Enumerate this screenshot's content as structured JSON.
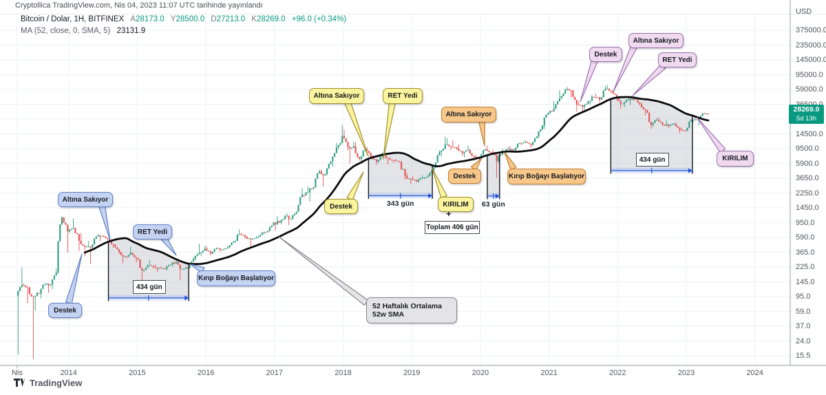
{
  "publish_bar": {
    "text": "Cryptollica TradingView.com, Nis 04, 2023 11:07 UTC tarihinde yayınlandı"
  },
  "legend": {
    "symbol": {
      "title": "Bitcoin / Dolar, 1H, BITFINEX",
      "open_label": "A",
      "open": "28173.0",
      "high_label": "Y",
      "high": "28500.0",
      "low_label": "D",
      "low": "27213.0",
      "close_label": "K",
      "close": "28269.0",
      "change": "+96.0 (+0.34%)"
    },
    "ma": {
      "label": "MA (52, close, 0, SMA, 5)",
      "value": "23131.9"
    }
  },
  "price_axis": {
    "currency": "USD",
    "ticks": [
      "375000.0",
      "235000.0",
      "145000.0",
      "95000.0",
      "59000.0",
      "36500.0",
      "14500.0",
      "9500.0",
      "5900.0",
      "3650.0",
      "2250.0",
      "1450.0",
      "950.0",
      "590.0",
      "365.0",
      "225.0",
      "145.0",
      "95.0",
      "59.0",
      "37.0",
      "24.0",
      "15.5"
    ],
    "last_price": "28269.0",
    "countdown": "5d 13h",
    "tag_color": "#089981"
  },
  "time_axis": {
    "first_label": "Nis",
    "years": [
      "2014",
      "2015",
      "2016",
      "2017",
      "2018",
      "2019",
      "2020",
      "2021",
      "2022",
      "2023",
      "2024"
    ]
  },
  "annotations": {
    "callouts": [
      {
        "id": "c1",
        "text": "Altına Sakıyor",
        "family": "blue"
      },
      {
        "id": "c2",
        "text": "RET Yedi",
        "family": "blue"
      },
      {
        "id": "c3",
        "text": "Destek",
        "family": "blue"
      },
      {
        "id": "c4",
        "text": "Kırıp Boğayı Başlatıyor",
        "family": "blue"
      },
      {
        "id": "c5",
        "text": "Altına Sakıyor",
        "family": "yellow"
      },
      {
        "id": "c6",
        "text": "RET Yedi",
        "family": "yellow"
      },
      {
        "id": "c7",
        "text": "Destek",
        "family": "yellow"
      },
      {
        "id": "c8",
        "text": "KIRILIM",
        "family": "yellow"
      },
      {
        "id": "c9",
        "text": "Altına Sakıyor",
        "family": "orange"
      },
      {
        "id": "c10",
        "text": "Destek",
        "family": "orange"
      },
      {
        "id": "c11",
        "text": "Kırıp Boğayı Başlatıyor",
        "family": "orange"
      },
      {
        "id": "c12",
        "text": "Destek",
        "family": "pink"
      },
      {
        "id": "c13",
        "text": "Altına Sakıyor",
        "family": "pink"
      },
      {
        "id": "c14",
        "text": "RET Yedi",
        "family": "pink"
      },
      {
        "id": "c15",
        "text": "KIRILIM",
        "family": "pink"
      }
    ],
    "total": {
      "plus": "+",
      "text": "Toplam 406 gün"
    },
    "sma_note": {
      "line1": "52 Haftalık Ortalama",
      "line2": "52w SMA"
    }
  },
  "footer": {
    "logo_text": "TradingView"
  },
  "colors": {
    "candle_up": "#2f9c7f",
    "candle_down": "#e4514f",
    "sma_line": "#0a0a0c",
    "grid": "#eef1f6",
    "region_fill": "#c6c9d2",
    "measure_blue": "#2962ff",
    "tag_bg": "#089981",
    "axis_text": "#50545e",
    "callout_blue": "#c5d3f2",
    "callout_yellow": "#fbf49e",
    "callout_orange": "#f8c88b",
    "callout_pink": "#efdaf0"
  },
  "chart_data": {
    "type": "candlestick",
    "symbol": "Bitcoin / Dolar",
    "interval": "1H",
    "exchange": "BITFINEX",
    "scale": "log",
    "months_start": "2013-04",
    "months_end": "2023-04",
    "first_open": 100,
    "close": [
      139,
      128,
      97,
      106,
      141,
      141,
      204,
      1130,
      732,
      806,
      550,
      458,
      446,
      627,
      635,
      583,
      478,
      387,
      338,
      378,
      320,
      218,
      254,
      244,
      236,
      230,
      263,
      284,
      230,
      236,
      314,
      377,
      430,
      369,
      437,
      416,
      448,
      531,
      673,
      624,
      573,
      610,
      700,
      745,
      964,
      970,
      1180,
      1080,
      1350,
      2300,
      2480,
      2875,
      4700,
      4360,
      6450,
      9900,
      14100,
      10100,
      10300,
      6930,
      9240,
      7490,
      6400,
      7730,
      7030,
      6620,
      6340,
      4030,
      3740,
      3460,
      3850,
      4100,
      5320,
      8560,
      10800,
      10100,
      9600,
      8300,
      9150,
      7550,
      7200,
      9350,
      8550,
      6440,
      8630,
      9450,
      9140,
      11350,
      11650,
      10780,
      13800,
      19700,
      29000,
      33100,
      45200,
      58800,
      57750,
      37300,
      35000,
      41500,
      47100,
      43800,
      61300,
      57000,
      46200,
      38500,
      43200,
      45500,
      37650,
      31800,
      19900,
      23300,
      20050,
      19400,
      20500,
      17150,
      16550,
      23100,
      23150,
      28450,
      28269
    ],
    "high": [
      240,
      146,
      133,
      112,
      148,
      147,
      232,
      1163,
      1150,
      1093,
      830,
      700,
      545,
      630,
      677,
      655,
      600,
      495,
      390,
      460,
      382,
      321,
      266,
      300,
      262,
      248,
      268,
      316,
      288,
      248,
      334,
      502,
      467,
      463,
      448,
      439,
      470,
      550,
      780,
      706,
      630,
      628,
      720,
      755,
      982,
      1180,
      1220,
      1290,
      1365,
      2790,
      2980,
      2920,
      4980,
      4980,
      6500,
      11400,
      19800,
      17200,
      11790,
      11700,
      9760,
      9990,
      7750,
      8480,
      7760,
      7410,
      6940,
      6550,
      4410,
      4090,
      4190,
      4290,
      5620,
      9060,
      13880,
      13150,
      12320,
      10950,
      10540,
      9500,
      7750,
      9570,
      10500,
      9190,
      9460,
      10050,
      10380,
      11450,
      12470,
      12050,
      14100,
      19860,
      29300,
      42000,
      58350,
      61780,
      64800,
      59500,
      41330,
      42240,
      50500,
      52920,
      66970,
      69000,
      59050,
      47980,
      45820,
      48190,
      47440,
      40020,
      31960,
      24670,
      25200,
      22800,
      21080,
      21480,
      18390,
      23960,
      25250,
      29180,
      29000
    ],
    "low": [
      16,
      79,
      14,
      63,
      92,
      109,
      123,
      198,
      380,
      700,
      400,
      340,
      267,
      421,
      543,
      560,
      442,
      365,
      275,
      320,
      280,
      152,
      210,
      231,
      210,
      225,
      219,
      245,
      162,
      220,
      233,
      300,
      340,
      350,
      365,
      385,
      410,
      438,
      520,
      590,
      465,
      565,
      595,
      670,
      740,
      750,
      920,
      890,
      1060,
      1340,
      2100,
      1840,
      2840,
      2970,
      4150,
      5400,
      9300,
      9000,
      6000,
      6600,
      6425,
      7040,
      5780,
      6070,
      5860,
      6180,
      6190,
      3650,
      3150,
      3350,
      3330,
      3660,
      4050,
      5270,
      7480,
      9080,
      9230,
      7700,
      7300,
      6520,
      6430,
      6850,
      8400,
      3850,
      6140,
      8100,
      8830,
      8900,
      10550,
      9820,
      10380,
      13200,
      17570,
      28130,
      32320,
      45000,
      46930,
      30000,
      28800,
      29300,
      37330,
      39600,
      43280,
      53250,
      42000,
      32950,
      34320,
      37160,
      37000,
      26700,
      17600,
      18780,
      19520,
      18130,
      18650,
      15480,
      16250,
      16490,
      21450,
      19570,
      27250
    ],
    "overlay_line": {
      "name": "52w SMA",
      "window_weeks": 52,
      "last_value": 23131.9
    },
    "bear_regions": [
      {
        "from_year": 2014.58,
        "to_year": 2015.75,
        "label": "434 gün",
        "boxed": true
      },
      {
        "from_year": 2018.37,
        "to_year": 2019.3,
        "label": "343 gün",
        "boxed": false
      },
      {
        "from_year": 2020.1,
        "to_year": 2020.28,
        "label": "63 gün",
        "boxed": false
      },
      {
        "from_year": 2021.9,
        "to_year": 2023.09,
        "label": "434 gün",
        "boxed": true
      }
    ],
    "total_annotation": "Toplam 406 gün"
  }
}
